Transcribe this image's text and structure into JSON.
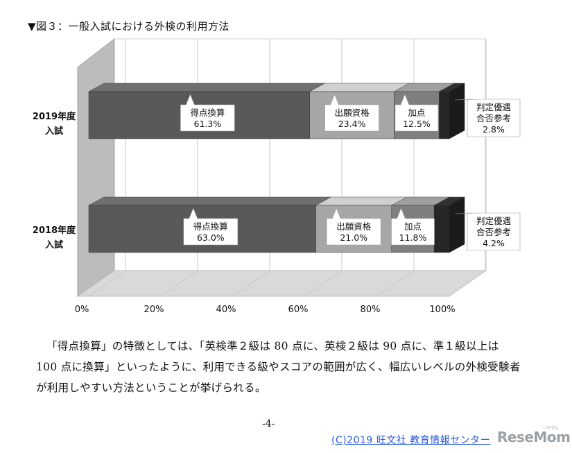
{
  "caption": "▼図３：一般入試における外検の利用方法",
  "chart_data": {
    "type": "bar",
    "orientation": "horizontal",
    "stacked": true,
    "categories": [
      "2019年度 入試",
      "2018年度 入試"
    ],
    "category_lines": [
      [
        "2019年度",
        "入試"
      ],
      [
        "2018年度",
        "入試"
      ]
    ],
    "series": [
      {
        "name": "得点換算",
        "values": [
          61.3,
          63.0
        ],
        "color": "#595959"
      },
      {
        "name": "出願資格",
        "values": [
          23.4,
          21.0
        ],
        "color": "#a6a6a6"
      },
      {
        "name": "加点",
        "values": [
          12.5,
          11.8
        ],
        "color": "#7f7f7f"
      },
      {
        "name": "判定優遇 合否参考",
        "values": [
          2.8,
          4.2
        ],
        "color": "#262626"
      }
    ],
    "data_labels": [
      [
        [
          "得点換算",
          "61.3%"
        ],
        [
          "出願資格",
          "23.4%"
        ],
        [
          "加点",
          "12.5%"
        ],
        [
          "判定優遇",
          "合否参考",
          "2.8%"
        ]
      ],
      [
        [
          "得点換算",
          "63.0%"
        ],
        [
          "出願資格",
          "21.0%"
        ],
        [
          "加点",
          "11.8%"
        ],
        [
          "判定優遇",
          "合否参考",
          "4.2%"
        ]
      ]
    ],
    "x_ticks": [
      "0%",
      "20%",
      "40%",
      "60%",
      "80%",
      "100%"
    ],
    "xlim": [
      0,
      100
    ],
    "grid": true,
    "style": "3d"
  },
  "paragraph": "「得点換算」の特徴としては、「英検準２級は 80 点に、英検２級は 90 点に、準１級以上は 100 点に換算」といったように、利用できる級やスコアの範囲が広く、幅広いレベルの外検受験者が利用しやすい方法ということが挙げられる。",
  "page_number": "-4-",
  "copyright": "(C)2019 旺文社 教育情報センター",
  "logo": {
    "text": "ReseMom",
    "small": "リセマム"
  }
}
